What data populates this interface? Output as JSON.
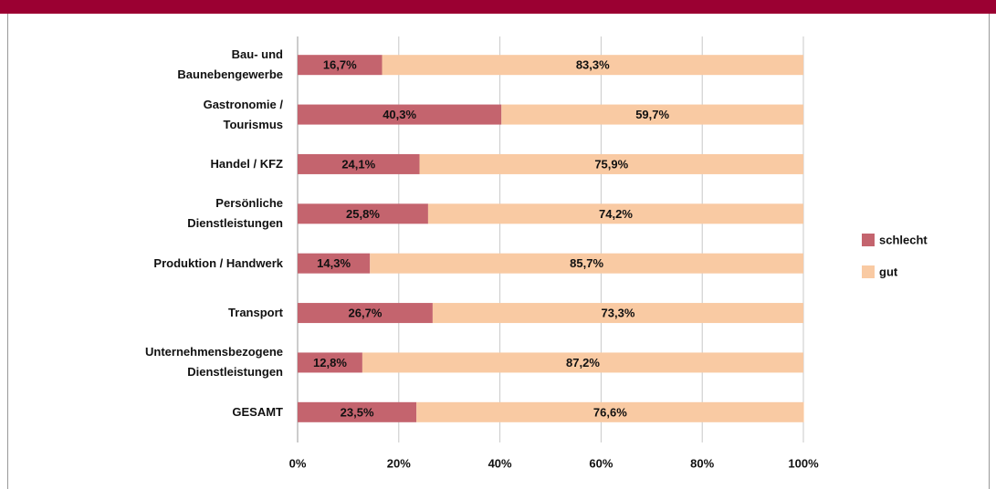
{
  "chart_data": {
    "type": "stacked_bar_horizontal",
    "categories": [
      "Bau- und\nBaunebengewerbe",
      "Gastronomie /\nTourismus",
      "Handel / KFZ",
      "Persönliche\nDienstleistungen",
      "Produktion / Handwerk",
      "Transport",
      "Unternehmensbezogene\nDienstleistungen",
      "GESAMT"
    ],
    "series": [
      {
        "name": "schlecht",
        "color": "#c4646e",
        "values": [
          16.7,
          40.3,
          24.1,
          25.8,
          14.3,
          26.7,
          12.8,
          23.5
        ],
        "value_labels": [
          "16,7%",
          "40,3%",
          "24,1%",
          "25,8%",
          "14,3%",
          "26,7%",
          "12,8%",
          "23,5%"
        ]
      },
      {
        "name": "gut",
        "color": "#f9caa3",
        "values": [
          83.3,
          59.7,
          75.9,
          74.2,
          85.7,
          73.3,
          87.2,
          76.6
        ],
        "value_labels": [
          "83,3%",
          "59,7%",
          "75,9%",
          "74,2%",
          "85,7%",
          "73,3%",
          "87,2%",
          "76,6%"
        ]
      }
    ],
    "xlim": [
      0,
      100
    ],
    "xticks": [
      {
        "value": 0,
        "label": "0%"
      },
      {
        "value": 20,
        "label": "20%"
      },
      {
        "value": 40,
        "label": "40%"
      },
      {
        "value": 60,
        "label": "60%"
      },
      {
        "value": 80,
        "label": "80%"
      },
      {
        "value": 100,
        "label": "100%"
      }
    ],
    "grid": true,
    "legend": "right"
  }
}
